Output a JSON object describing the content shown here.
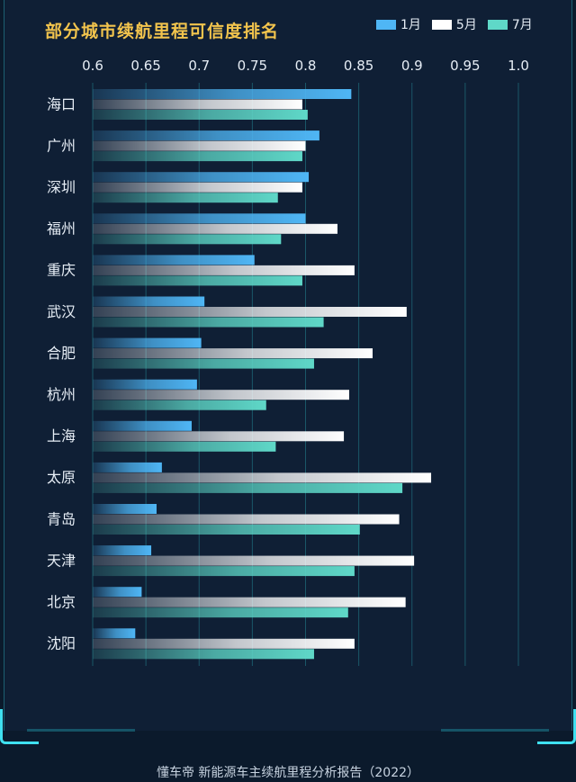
{
  "header": {
    "title": "部分城市续航里程可信度排名"
  },
  "legend": [
    {
      "label": "1月",
      "color": "#4fb6f5"
    },
    {
      "label": "5月",
      "color": "#ffffff"
    },
    {
      "label": "7月",
      "color": "#5fd8c8"
    }
  ],
  "footer": {
    "source": "懂车帝 新能源车主续航里程分析报告（2022）"
  },
  "chart_data": {
    "type": "bar",
    "orientation": "horizontal",
    "title": "部分城市续航里程可信度排名",
    "xlim": [
      0.6,
      1.0
    ],
    "ticks": [
      "0.6",
      "0.65",
      "0.7",
      "0.75",
      "0.8",
      "0.85",
      "0.9",
      "0.95",
      "1.0"
    ],
    "tick_values": [
      0.6,
      0.65,
      0.7,
      0.75,
      0.8,
      0.85,
      0.9,
      0.95,
      1.0
    ],
    "grid": true,
    "legend_position": "top-right",
    "categories": [
      "海口",
      "广州",
      "深圳",
      "福州",
      "重庆",
      "武汉",
      "合肥",
      "杭州",
      "上海",
      "太原",
      "青岛",
      "天津",
      "北京",
      "沈阳"
    ],
    "series": [
      {
        "name": "1月",
        "color": "#4fb6f5",
        "values": [
          0.843,
          0.813,
          0.803,
          0.8,
          0.752,
          0.705,
          0.702,
          0.698,
          0.693,
          0.665,
          0.66,
          0.655,
          0.646,
          0.64
        ]
      },
      {
        "name": "5月",
        "color": "#ffffff",
        "values": [
          0.797,
          0.8,
          0.797,
          0.83,
          0.846,
          0.895,
          0.863,
          0.841,
          0.836,
          0.918,
          0.888,
          0.902,
          0.894,
          0.846
        ]
      },
      {
        "name": "7月",
        "color": "#5fd8c8",
        "values": [
          0.802,
          0.797,
          0.774,
          0.777,
          0.797,
          0.817,
          0.808,
          0.763,
          0.772,
          0.891,
          0.851,
          0.846,
          0.84,
          0.808
        ]
      }
    ]
  }
}
